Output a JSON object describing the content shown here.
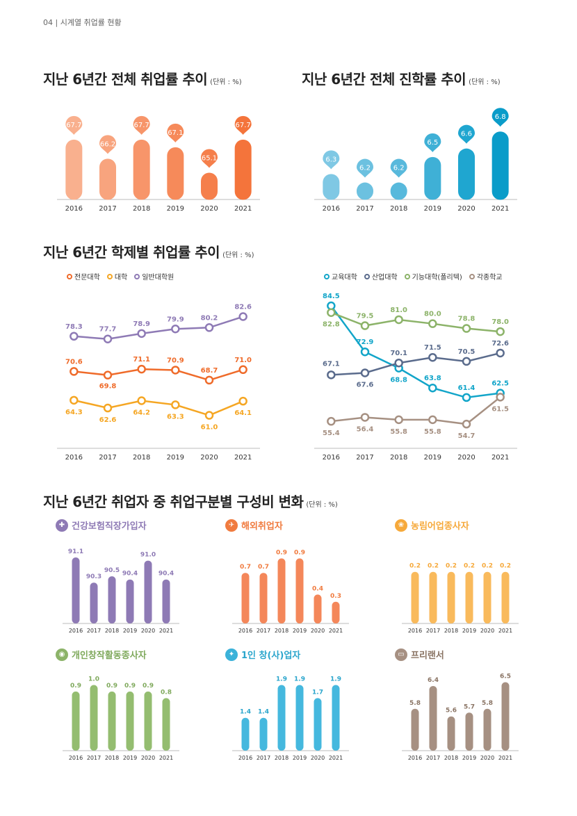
{
  "header": {
    "page_number": "04",
    "section": "시계열 취업률 현황"
  },
  "titles": {
    "t1": "지난 6년간 전체 취업률 추이",
    "t2": "지난 6년간 전체 진학률 추이",
    "t3": "지난 6년간 학제별 취업률 추이",
    "t4": "지난 6년간 취업자 중 취업구분별 구성비 변화",
    "unit": "(단위 : %)"
  },
  "colors": {
    "orange": "#F07B3F",
    "teal": "#12A5C9",
    "purple": "#8E7AB5",
    "green": "#8CB369",
    "sky": "#3BB2D9",
    "taupe": "#A69082",
    "yellow": "#F6B24A",
    "navy": "#5A6B8C"
  },
  "legend_left": [
    "전문대학",
    "대학",
    "일반대학원"
  ],
  "legend_right": [
    "교육대학",
    "산업대학",
    "기능대학(폴리텍)",
    "각종학교"
  ],
  "small_titles": [
    "건강보험직장가입자",
    "해외취업자",
    "농림어업종사자",
    "개인창작활동종사자",
    "1인 창(사)업자",
    "프리랜서"
  ],
  "chart_data": [
    {
      "id": "employment",
      "type": "bar",
      "title": "지난 6년간 전체 취업률 추이",
      "categories": [
        "2016",
        "2017",
        "2018",
        "2019",
        "2020",
        "2021"
      ],
      "values": [
        67.7,
        66.2,
        67.7,
        67.1,
        65.1,
        67.7
      ],
      "labels": [
        "67.7",
        "66.2",
        "67.7",
        "67.1",
        "65.1",
        "67.7"
      ],
      "ylim": [
        63,
        69
      ]
    },
    {
      "id": "advancement",
      "type": "bar",
      "title": "지난 6년간 전체 진학률 추이",
      "categories": [
        "2016",
        "2017",
        "2018",
        "2019",
        "2020",
        "2021"
      ],
      "values": [
        6.3,
        6.2,
        6.2,
        6.5,
        6.6,
        6.8
      ],
      "labels": [
        "6.3",
        "6.2",
        "6.2",
        "6.5",
        "6.6",
        "6.8"
      ],
      "ylim": [
        6.0,
        6.9
      ]
    },
    {
      "id": "byschool_left",
      "type": "line",
      "title": "지난 6년간 학제별 취업률 추이",
      "categories": [
        "2016",
        "2017",
        "2018",
        "2019",
        "2020",
        "2021"
      ],
      "series": [
        {
          "name": "전문대학",
          "values": [
            70.6,
            69.8,
            71.1,
            70.9,
            68.7,
            71.0
          ],
          "labels": [
            "70.6",
            "69.8",
            "71.1",
            "70.9",
            "68.7",
            "71.0"
          ]
        },
        {
          "name": "대학",
          "values": [
            64.3,
            62.6,
            64.2,
            63.3,
            61.0,
            64.1
          ],
          "labels": [
            "64.3",
            "62.6",
            "64.2",
            "63.3",
            "61.0",
            "64.1"
          ]
        },
        {
          "name": "일반대학원",
          "values": [
            78.3,
            77.7,
            78.9,
            79.9,
            80.2,
            82.6
          ],
          "labels": [
            "78.3",
            "77.7",
            "78.9",
            "79.9",
            "80.2",
            "82.6"
          ]
        }
      ],
      "ylim": [
        55,
        88
      ]
    },
    {
      "id": "byschool_right",
      "type": "line",
      "categories": [
        "2016",
        "2017",
        "2018",
        "2019",
        "2020",
        "2021"
      ],
      "series": [
        {
          "name": "교육대학",
          "values": [
            84.5,
            72.9,
            68.8,
            63.8,
            61.4,
            62.5
          ],
          "labels": [
            "84.5",
            "72.9",
            "68.8",
            "63.8",
            "61.4",
            "62.5"
          ]
        },
        {
          "name": "산업대학",
          "values": [
            67.1,
            67.6,
            70.1,
            71.5,
            70.5,
            72.6
          ],
          "labels": [
            "67.1",
            "67.6",
            "70.1",
            "71.5",
            "70.5",
            "72.6"
          ]
        },
        {
          "name": "기능대학(폴리텍)",
          "values": [
            82.8,
            79.5,
            81.0,
            80.0,
            78.8,
            78.0
          ],
          "labels": [
            "82.8",
            "79.5",
            "81.0",
            "80.0",
            "78.8",
            "78.0"
          ]
        },
        {
          "name": "각종학교",
          "values": [
            55.4,
            56.4,
            55.8,
            55.8,
            54.7,
            61.5
          ],
          "labels": [
            "55.4",
            "56.4",
            "55.8",
            "55.8",
            "54.7",
            "61.5"
          ]
        }
      ],
      "ylim": [
        50,
        88
      ]
    },
    {
      "id": "health",
      "type": "bar",
      "title": "건강보험직장가입자",
      "categories": [
        "2016",
        "2017",
        "2018",
        "2019",
        "2020",
        "2021"
      ],
      "values": [
        91.1,
        90.3,
        90.5,
        90.4,
        91.0,
        90.4
      ],
      "labels": [
        "91.1",
        "90.3",
        "90.5",
        "90.4",
        "91.0",
        "90.4"
      ],
      "ylim": [
        89,
        91.3
      ]
    },
    {
      "id": "overseas",
      "type": "bar",
      "title": "해외취업자",
      "categories": [
        "2016",
        "2017",
        "2018",
        "2019",
        "2020",
        "2021"
      ],
      "values": [
        0.7,
        0.7,
        0.9,
        0.9,
        0.4,
        0.3
      ],
      "labels": [
        "0.7",
        "0.7",
        "0.9",
        "0.9",
        "0.4",
        "0.3"
      ],
      "ylim": [
        0,
        1.0
      ]
    },
    {
      "id": "agri",
      "type": "bar",
      "title": "농림어업종사자",
      "categories": [
        "2016",
        "2017",
        "2018",
        "2019",
        "2020",
        "2021"
      ],
      "values": [
        0.2,
        0.2,
        0.2,
        0.2,
        0.2,
        0.2
      ],
      "labels": [
        "0.2",
        "0.2",
        "0.2",
        "0.2",
        "0.2",
        "0.2"
      ],
      "ylim": [
        0,
        0.28
      ]
    },
    {
      "id": "creative",
      "type": "bar",
      "title": "개인창작활동종사자",
      "categories": [
        "2016",
        "2017",
        "2018",
        "2019",
        "2020",
        "2021"
      ],
      "values": [
        0.9,
        1.0,
        0.9,
        0.9,
        0.9,
        0.8
      ],
      "labels": [
        "0.9",
        "1.0",
        "0.9",
        "0.9",
        "0.9",
        "0.8"
      ],
      "ylim": [
        0,
        1.1
      ]
    },
    {
      "id": "startup",
      "type": "bar",
      "title": "1인 창(사)업자",
      "categories": [
        "2016",
        "2017",
        "2018",
        "2019",
        "2020",
        "2021"
      ],
      "values": [
        1.4,
        1.4,
        1.9,
        1.9,
        1.7,
        1.9
      ],
      "labels": [
        "1.4",
        "1.4",
        "1.9",
        "1.9",
        "1.7",
        "1.9"
      ],
      "ylim": [
        0.9,
        2.0
      ]
    },
    {
      "id": "freelance",
      "type": "bar",
      "title": "프리랜서",
      "categories": [
        "2016",
        "2017",
        "2018",
        "2019",
        "2020",
        "2021"
      ],
      "values": [
        5.8,
        6.4,
        5.6,
        5.7,
        5.8,
        6.5
      ],
      "labels": [
        "5.8",
        "6.4",
        "5.6",
        "5.7",
        "5.8",
        "6.5"
      ],
      "ylim": [
        4.7,
        6.6
      ]
    }
  ]
}
